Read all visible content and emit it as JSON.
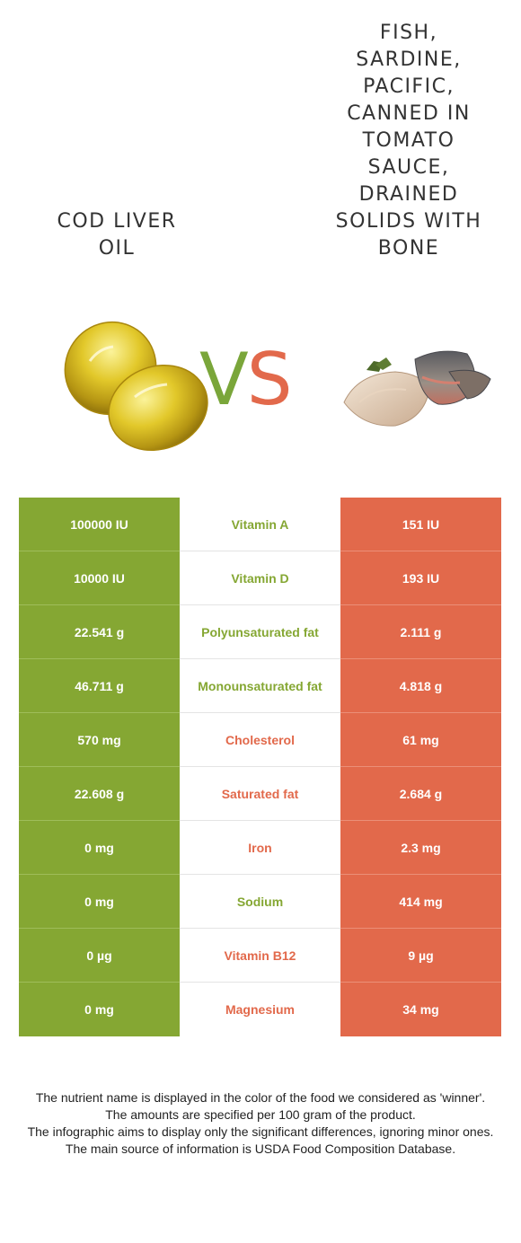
{
  "food_left": {
    "name": "Cod liver oil",
    "color": "#85a733"
  },
  "food_right": {
    "name": "Fish, sardine, Pacific, canned in tomato sauce, drained solids with bone",
    "color": "#e2694b"
  },
  "vs": {
    "v": "V",
    "s": "S"
  },
  "nutrients": [
    {
      "name": "Vitamin A",
      "left": "100000 IU",
      "right": "151 IU",
      "winner": "left"
    },
    {
      "name": "Vitamin D",
      "left": "10000 IU",
      "right": "193 IU",
      "winner": "left"
    },
    {
      "name": "Polyunsaturated fat",
      "left": "22.541 g",
      "right": "2.111 g",
      "winner": "left"
    },
    {
      "name": "Monounsaturated fat",
      "left": "46.711 g",
      "right": "4.818 g",
      "winner": "left"
    },
    {
      "name": "Cholesterol",
      "left": "570 mg",
      "right": "61 mg",
      "winner": "right"
    },
    {
      "name": "Saturated fat",
      "left": "22.608 g",
      "right": "2.684 g",
      "winner": "right"
    },
    {
      "name": "Iron",
      "left": "0 mg",
      "right": "2.3 mg",
      "winner": "right"
    },
    {
      "name": "Sodium",
      "left": "0 mg",
      "right": "414 mg",
      "winner": "left"
    },
    {
      "name": "Vitamin B12",
      "left": "0 µg",
      "right": "9 µg",
      "winner": "right"
    },
    {
      "name": "Magnesium",
      "left": "0 mg",
      "right": "34 mg",
      "winner": "right"
    }
  ],
  "footer": [
    "The nutrient name is displayed in the color of the food we considered as 'winner'.",
    "The amounts are specified per 100 gram of the product.",
    "The infographic aims to display only the significant differences, ignoring minor ones.",
    "The main source of information is USDA Food Composition Database."
  ]
}
